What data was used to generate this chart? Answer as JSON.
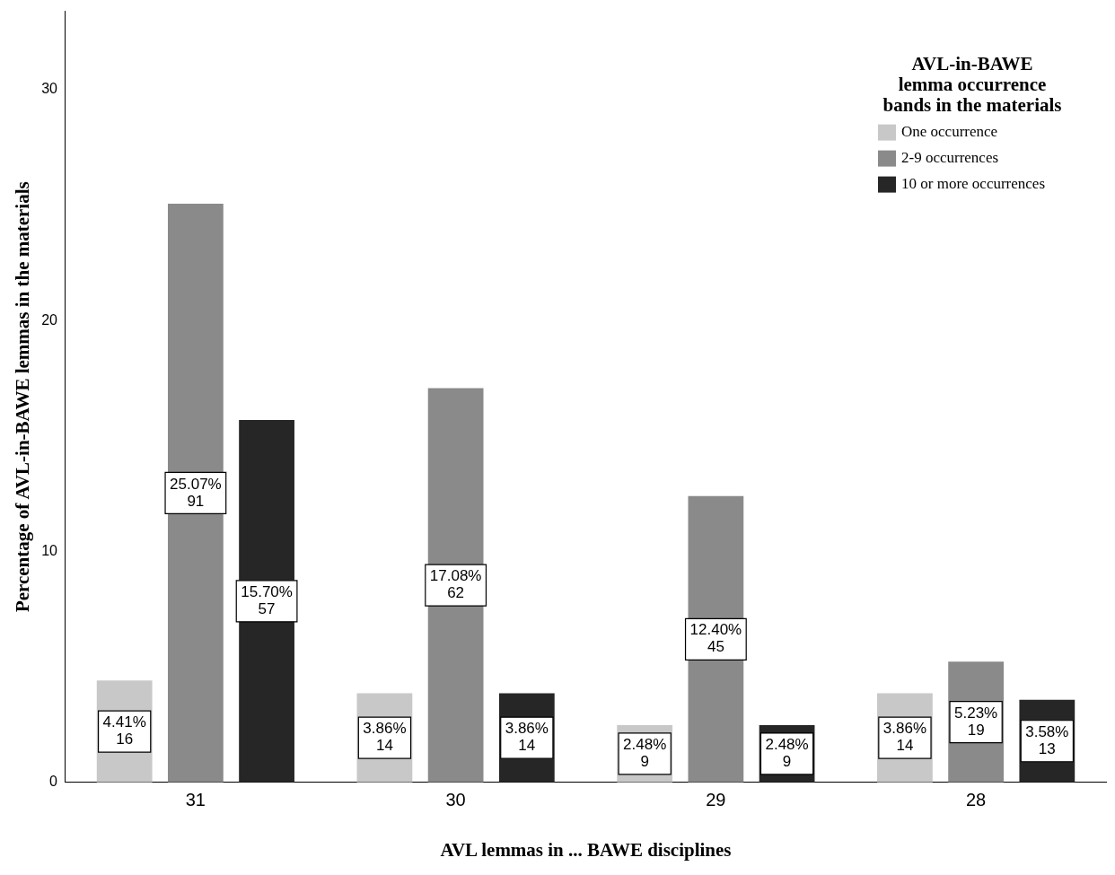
{
  "chart_data": {
    "type": "bar",
    "xlabel": "AVL lemmas in ... BAWE disciplines",
    "ylabel": "Percentage of AVL-in-BAWE lemmas in the materials",
    "legend_title": "AVL-in-BAWE lemma occurrence bands in the materials",
    "categories": [
      "31",
      "30",
      "29",
      "28"
    ],
    "series": [
      {
        "name": "One occurrence",
        "color": "#c8c8c8",
        "values": [
          4.41,
          3.86,
          2.48,
          3.86
        ],
        "value_labels": [
          "4.41%\n16",
          "3.86%\n14",
          "2.48%\n9",
          "3.86%\n14"
        ]
      },
      {
        "name": "2-9 occurrences",
        "color": "#8a8a8a",
        "values": [
          25.07,
          17.08,
          12.4,
          5.23
        ],
        "value_labels": [
          "25.07%\n91",
          "17.08%\n62",
          "12.40%\n45",
          "5.23%\n19"
        ]
      },
      {
        "name": "10 or more occurrences",
        "color": "#262626",
        "values": [
          15.7,
          3.86,
          2.48,
          3.58
        ],
        "value_labels": [
          "15.70%\n57",
          "3.86%\n14",
          "2.48%\n9",
          "3.58%\n13"
        ]
      }
    ],
    "ylim": [
      0,
      33.4
    ],
    "yticks": [
      0,
      10,
      20,
      30
    ],
    "grid": false,
    "legend": "top right"
  }
}
